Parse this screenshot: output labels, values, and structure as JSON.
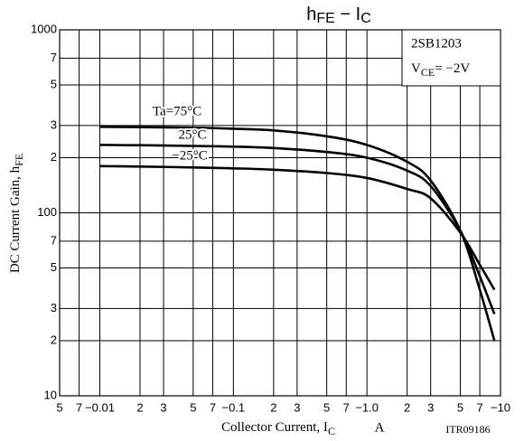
{
  "chart_data": {
    "type": "line",
    "title": [
      "h",
      "FE",
      " − I",
      "C"
    ],
    "y_label": [
      "DC Current Gain, h",
      "FE"
    ],
    "x_label": [
      "Collector Current, I",
      "C"
    ],
    "x_unit": "A",
    "device": "2SB1203",
    "condition": [
      "V",
      "CE",
      "= −2V"
    ],
    "code": "ITR09186",
    "log_x": true,
    "log_y": true,
    "grid": true,
    "xlim": [
      0.005,
      10
    ],
    "ylim": [
      10,
      1000
    ],
    "xticks": [
      {
        "value": 0.005,
        "label": "5"
      },
      {
        "value": 0.007,
        "label": "7"
      },
      {
        "value": 0.01,
        "label": "−0.01"
      },
      {
        "value": 0.02,
        "label": "2"
      },
      {
        "value": 0.03,
        "label": "3"
      },
      {
        "value": 0.05,
        "label": "5"
      },
      {
        "value": 0.07,
        "label": "7"
      },
      {
        "value": 0.1,
        "label": "−0.1"
      },
      {
        "value": 0.2,
        "label": "2"
      },
      {
        "value": 0.3,
        "label": "3"
      },
      {
        "value": 0.5,
        "label": "5"
      },
      {
        "value": 0.7,
        "label": "7"
      },
      {
        "value": 1,
        "label": "−1.0"
      },
      {
        "value": 2,
        "label": "2"
      },
      {
        "value": 3,
        "label": "3"
      },
      {
        "value": 5,
        "label": "5"
      },
      {
        "value": 7,
        "label": "7"
      },
      {
        "value": 10,
        "label": "−10"
      }
    ],
    "yticks": [
      10,
      {
        "value": 20,
        "label": "2"
      },
      {
        "value": 30,
        "label": "3"
      },
      {
        "value": 50,
        "label": "5"
      },
      {
        "value": 70,
        "label": "7"
      },
      100,
      {
        "value": 200,
        "label": "2"
      },
      {
        "value": 300,
        "label": "3"
      },
      {
        "value": 500,
        "label": "5"
      },
      {
        "value": 700,
        "label": "7"
      },
      1000
    ],
    "x": [
      0.01,
      0.02,
      0.05,
      0.1,
      0.2,
      0.5,
      1,
      2,
      3,
      5,
      7,
      9
    ],
    "series": [
      {
        "name": "Ta=75°C",
        "color": "#000000",
        "values": [
          295,
          294,
          292,
          288,
          282,
          262,
          235,
          190,
          150,
          80,
          38,
          20
        ]
      },
      {
        "name": "25°C",
        "color": "#000000",
        "values": [
          235,
          234,
          232,
          230,
          226,
          215,
          200,
          170,
          140,
          80,
          45,
          28
        ]
      },
      {
        "name": "−25°C",
        "color": "#000000",
        "values": [
          180,
          179,
          177,
          175,
          172,
          165,
          155,
          135,
          120,
          78,
          52,
          38
        ]
      }
    ]
  }
}
